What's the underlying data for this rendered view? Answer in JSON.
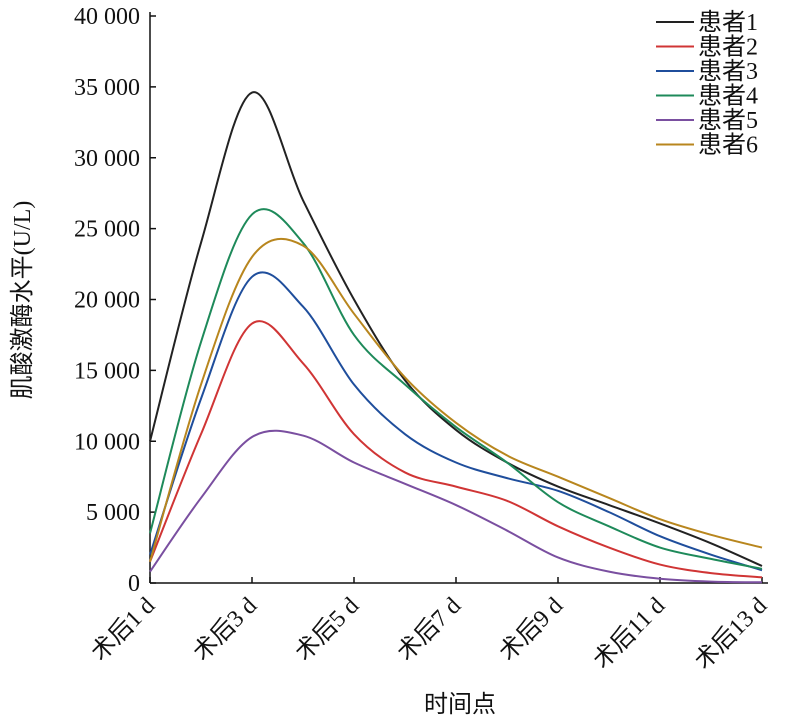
{
  "chart_data": {
    "type": "line",
    "x_label": "时间点",
    "y_label": "肌酸激酶水平(U/L)",
    "xlim": [
      1,
      13
    ],
    "xticks": [
      {
        "value": 1,
        "label": "术后1 d"
      },
      {
        "value": 3,
        "label": "术后3 d"
      },
      {
        "value": 5,
        "label": "术后5 d"
      },
      {
        "value": 7,
        "label": "术后7 d"
      },
      {
        "value": 9,
        "label": "术后9 d"
      },
      {
        "value": 11,
        "label": "术后11 d"
      },
      {
        "value": 13,
        "label": "术后13 d"
      }
    ],
    "ylim": [
      0,
      40000
    ],
    "yticks": [
      0,
      {
        "value": 5000,
        "label": "5 000"
      },
      {
        "value": 10000,
        "label": "10 000"
      },
      {
        "value": 15000,
        "label": "15 000"
      },
      {
        "value": 20000,
        "label": "20 000"
      },
      {
        "value": 25000,
        "label": "25 000"
      },
      {
        "value": 30000,
        "label": "30 000"
      },
      {
        "value": 35000,
        "label": "35 000"
      },
      {
        "value": 40000,
        "label": "40 000"
      }
    ],
    "legend": "top-right",
    "x": [
      1,
      2,
      3,
      4,
      5,
      6,
      7,
      8,
      9,
      10,
      11,
      12,
      13
    ],
    "series": [
      {
        "name": "患者1",
        "color": "#222222",
        "values": [
          10000,
          24000,
          34600,
          27000,
          20000,
          14300,
          10800,
          8500,
          6800,
          5500,
          4200,
          2800,
          1200
        ]
      },
      {
        "name": "患者2",
        "color": "#d03535",
        "values": [
          1500,
          10500,
          18300,
          15500,
          10500,
          7800,
          6800,
          5800,
          4000,
          2500,
          1300,
          700,
          400
        ]
      },
      {
        "name": "患者3",
        "color": "#1f4e9c",
        "values": [
          2000,
          13000,
          21600,
          19500,
          14000,
          10500,
          8500,
          7400,
          6500,
          5000,
          3300,
          2000,
          900
        ]
      },
      {
        "name": "患者4",
        "color": "#1e8a5a",
        "values": [
          3500,
          17000,
          26000,
          24000,
          17500,
          14000,
          11000,
          8500,
          5700,
          4000,
          2500,
          1700,
          1000
        ]
      },
      {
        "name": "患者5",
        "color": "#7a4fa0",
        "values": [
          800,
          6000,
          10300,
          10400,
          8500,
          7000,
          5500,
          3700,
          1800,
          800,
          300,
          100,
          50
        ]
      },
      {
        "name": "患者6",
        "color": "#b8861e",
        "values": [
          1500,
          14000,
          23000,
          23800,
          19000,
          14500,
          11300,
          9000,
          7500,
          6000,
          4500,
          3400,
          2500
        ]
      }
    ]
  }
}
